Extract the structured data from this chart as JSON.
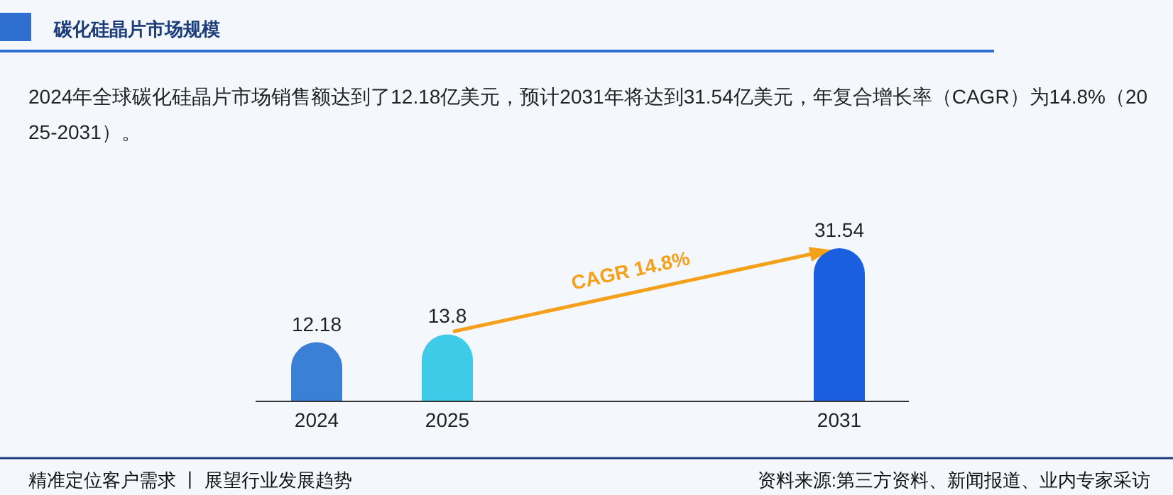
{
  "chart_data": {
    "type": "bar",
    "title": "碳化硅晶片市场规模",
    "subtitle": "2024年全球碳化硅晶片市场销售额达到了12.18亿美元，预计2031年将达到31.54亿美元，年复合增长率（CAGR）为14.8%（2025-2031）。",
    "categories": [
      "2024",
      "2025",
      null,
      null,
      "2031"
    ],
    "values": [
      12.18,
      13.8,
      null,
      null,
      31.54
    ],
    "colors": [
      "#3a80d6",
      "#3ecbe8",
      null,
      null,
      "#1a5fe0"
    ],
    "data_labels": true,
    "annotations": [
      "CAGR 14.8%",
      "精准定位客户需求 丨 展望行业发展趋势",
      "资料来源:第三方资料、新闻报道、业内专家采访"
    ]
  }
}
